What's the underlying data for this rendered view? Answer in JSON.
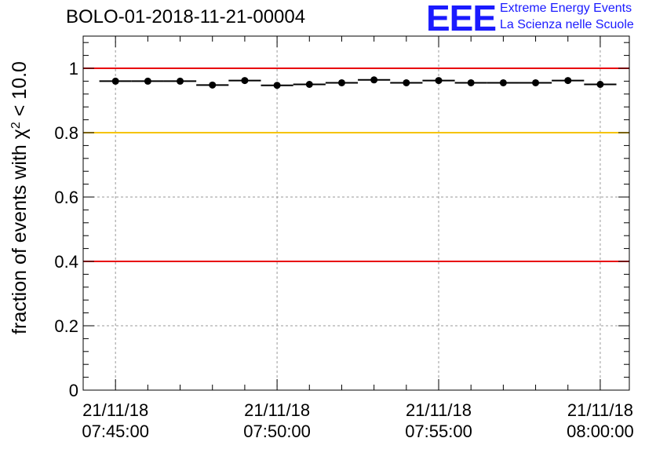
{
  "title": "BOLO-01-2018-11-21-00004",
  "logo": {
    "mark": "EEE",
    "line1": "Extreme Energy Events",
    "line2": "La Scienza nelle Scuole",
    "color": "#1a1aff"
  },
  "chart_data": {
    "type": "scatter",
    "title": "BOLO-01-2018-11-21-00004",
    "ylabel_main": "fraction of events with χ",
    "ylabel_sup": "2",
    "ylabel_tail": " < 10.0",
    "ylim": [
      0,
      1.1
    ],
    "yticks": [
      "0",
      "0.2",
      "0.4",
      "0.6",
      "0.8",
      "1"
    ],
    "ytick_values": [
      0,
      0.2,
      0.4,
      0.6,
      0.8,
      1.0
    ],
    "xlim_minutes": [
      -1,
      15.9
    ],
    "xticks": [
      {
        "date": "21/11/18",
        "time": "07:45:00",
        "minute": 0
      },
      {
        "date": "21/11/18",
        "time": "07:50:00",
        "minute": 5
      },
      {
        "date": "21/11/18",
        "time": "07:55:00",
        "minute": 10
      },
      {
        "date": "21/11/18",
        "time": "08:00:00",
        "minute": 15
      }
    ],
    "grid": true,
    "reference_lines": [
      {
        "y": 1.0,
        "color": "#e8000b"
      },
      {
        "y": 0.8,
        "color": "#f5c400"
      },
      {
        "y": 0.4,
        "color": "#e8000b"
      }
    ],
    "bin_width_minutes": 1,
    "x_minutes": [
      0,
      1,
      2,
      3,
      4,
      5,
      6,
      7,
      8,
      9,
      10,
      11,
      12,
      13,
      14,
      15
    ],
    "values": [
      0.96,
      0.96,
      0.96,
      0.948,
      0.962,
      0.947,
      0.95,
      0.955,
      0.964,
      0.955,
      0.962,
      0.955,
      0.955,
      0.955,
      0.962,
      0.95
    ]
  }
}
